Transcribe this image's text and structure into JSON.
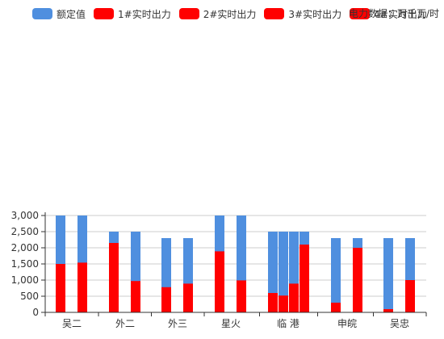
{
  "unit_label": "电力数据：万千瓦/时",
  "colors": {
    "rated": "#4f8fdf",
    "realtime": "#ff0000",
    "axis": "#333333",
    "grid": "#cccccc",
    "text": "#333333"
  },
  "chart_data": {
    "type": "bar",
    "legend": {
      "position": "top-left",
      "items": [
        "额定值",
        "1#实时出力",
        "2#实时出力",
        "3#实时出力",
        "4#实时出力"
      ]
    },
    "categories": [
      "吴二",
      "外二",
      "外三",
      "星火",
      "临 港",
      "申皖",
      "吴忠"
    ],
    "yticks": [
      "0",
      "500",
      "1,000",
      "1,500",
      "2,000",
      "2,500",
      "3,000"
    ],
    "ylim": [
      0,
      3000
    ],
    "grid": true,
    "units": [
      {
        "category": "吴二",
        "rated": 3000,
        "actual": 1500
      },
      {
        "category": "吴二",
        "rated": 3000,
        "actual": 1540
      },
      {
        "category": "外二",
        "rated": 2500,
        "actual": 2150
      },
      {
        "category": "外二",
        "rated": 2500,
        "actual": 970
      },
      {
        "category": "外三",
        "rated": 2300,
        "actual": 780
      },
      {
        "category": "外三",
        "rated": 2300,
        "actual": 890
      },
      {
        "category": "星火",
        "rated": 3000,
        "actual": 1890
      },
      {
        "category": "星火",
        "rated": 3000,
        "actual": 990
      },
      {
        "category": "临 港",
        "rated": 2500,
        "actual": 600
      },
      {
        "category": "临 港",
        "rated": 2500,
        "actual": 520
      },
      {
        "category": "临 港",
        "rated": 2500,
        "actual": 890
      },
      {
        "category": "临 港",
        "rated": 2500,
        "actual": 2100
      },
      {
        "category": "申皖",
        "rated": 2300,
        "actual": 300
      },
      {
        "category": "申皖",
        "rated": 2300,
        "actual": 2000
      },
      {
        "category": "吴忠",
        "rated": 2300,
        "actual": 100
      },
      {
        "category": "吴忠",
        "rated": 2300,
        "actual": 1000
      }
    ]
  }
}
